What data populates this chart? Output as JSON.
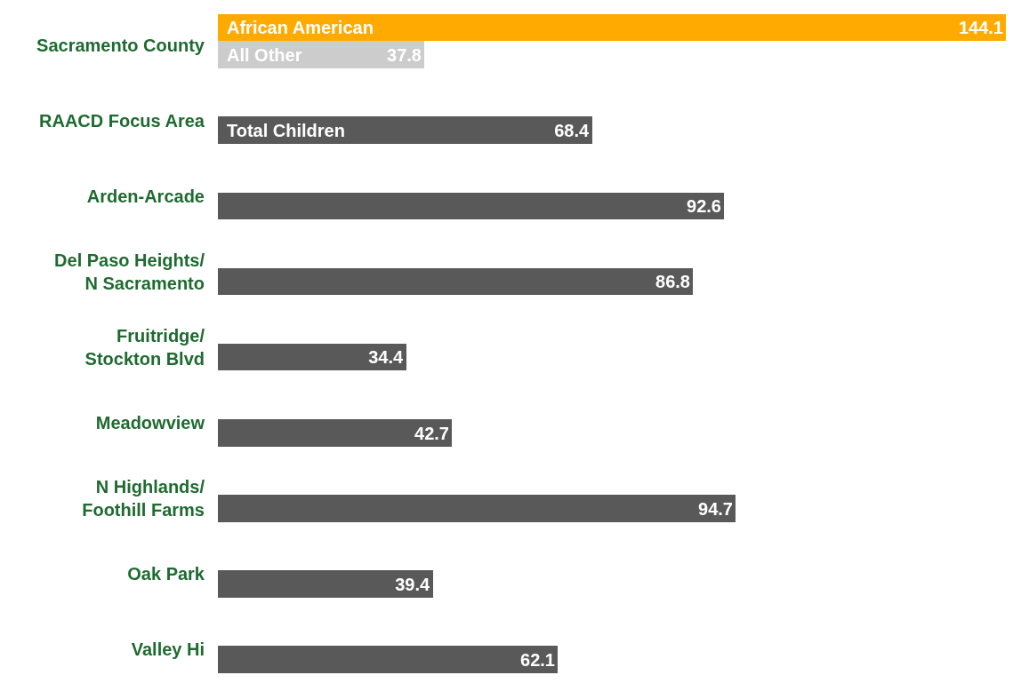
{
  "chart_data": {
    "type": "bar",
    "orientation": "horizontal",
    "data_labels": true,
    "legend": false,
    "categories": [
      "Sacramento County",
      "RAACD Focus Area",
      "Arden-Arcade",
      "Del Paso Heights/\nN Sacramento",
      "Fruitridge/\nStockton Blvd",
      "Meadowview",
      "N Highlands/\nFoothill Farms",
      "Oak Park",
      "Valley Hi"
    ],
    "series": [
      {
        "name": "African American",
        "color": "#ffaa00",
        "values": [
          144.1,
          null,
          null,
          null,
          null,
          null,
          null,
          null,
          null
        ]
      },
      {
        "name": "All Other",
        "color": "#cccccc",
        "values": [
          37.8,
          null,
          null,
          null,
          null,
          null,
          null,
          null,
          null
        ]
      },
      {
        "name": "Total Children",
        "color": "#595959",
        "values": [
          null,
          68.4,
          92.6,
          86.8,
          34.4,
          42.7,
          94.7,
          39.4,
          62.1
        ]
      }
    ]
  }
}
